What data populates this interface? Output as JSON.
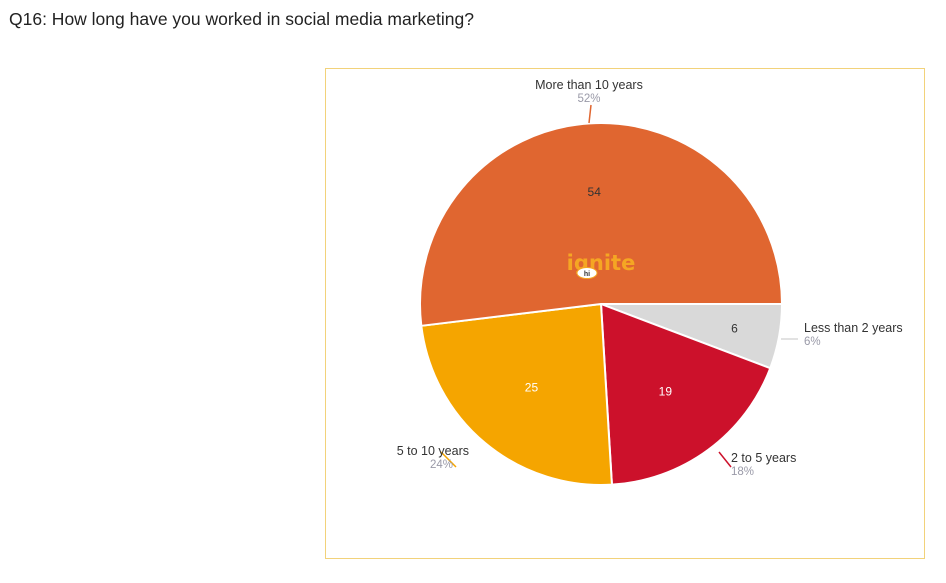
{
  "question": "Q16: How long have you worked in social media marketing?",
  "logo": {
    "text": "ignite",
    "badge": "hi"
  },
  "chart_data": {
    "type": "pie",
    "slices": [
      {
        "label": "Less than 2 years",
        "value": 6,
        "percent": "6%",
        "color": "#d9d9d9",
        "value_color": "#333333"
      },
      {
        "label": "2 to 5 years",
        "value": 19,
        "percent": "18%",
        "color": "#cc112b",
        "value_color": "#ffffff"
      },
      {
        "label": "5 to 10 years",
        "value": 25,
        "percent": "24%",
        "color": "#f5a500",
        "value_color": "#ffffff"
      },
      {
        "label": "More than 10 years",
        "value": 54,
        "percent": "52%",
        "color": "#e06630",
        "value_color": "#333333"
      }
    ],
    "start": "3 o'clock",
    "direction": "clockwise"
  }
}
